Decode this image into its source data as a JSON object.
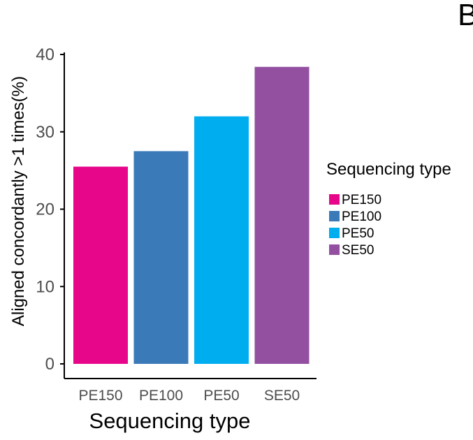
{
  "chart_data": {
    "type": "bar",
    "categories": [
      "PE150",
      "PE100",
      "PE50",
      "SE50"
    ],
    "values": [
      25.5,
      27.5,
      32.0,
      38.4
    ],
    "colors": [
      "#E7068A",
      "#3A7AB8",
      "#00ADEE",
      "#9350A0"
    ],
    "title": "",
    "xlabel": "Sequencing type",
    "ylabel": "Aligned concordantly >1 times(%)",
    "ylim": [
      0,
      40
    ],
    "yticks": [
      0,
      10,
      20,
      30,
      40
    ],
    "grid": false,
    "legend": {
      "title": "Sequencing type",
      "position": "right",
      "entries": [
        "PE150",
        "PE100",
        "PE50",
        "SE50"
      ]
    }
  },
  "panel_label": "B"
}
